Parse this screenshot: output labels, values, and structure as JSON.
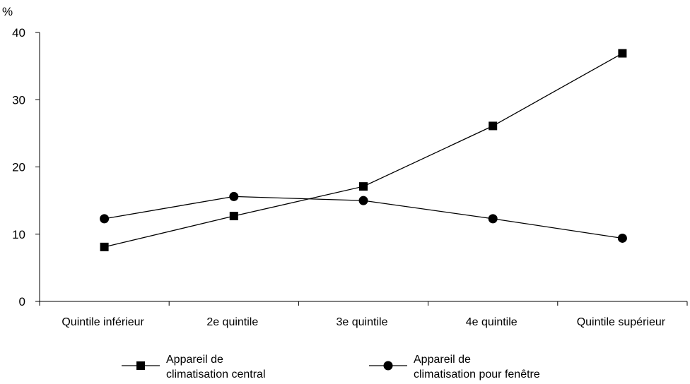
{
  "chart_data": {
    "type": "line",
    "ylabel": "%",
    "ylim": [
      0,
      40
    ],
    "yticks": [
      0,
      10,
      20,
      30,
      40
    ],
    "categories": [
      "Quintile inférieur",
      "2e quintile",
      "3e quintile",
      "4e quintile",
      "Quintile supérieur"
    ],
    "series": [
      {
        "name": "Appareil de climatisation central",
        "name_lines": [
          "Appareil de",
          "climatisation central"
        ],
        "marker": "square",
        "values": [
          8.1,
          12.7,
          17.1,
          26.1,
          36.9
        ]
      },
      {
        "name": "Appareil de climatisation pour fenêtre",
        "name_lines": [
          "Appareil de",
          "climatisation pour fenêtre"
        ],
        "marker": "circle",
        "values": [
          12.3,
          15.6,
          15.0,
          12.3,
          9.4
        ]
      }
    ],
    "grid": false,
    "legend": "bottom",
    "colors": {
      "line": "#000000",
      "marker": "#000000"
    }
  }
}
